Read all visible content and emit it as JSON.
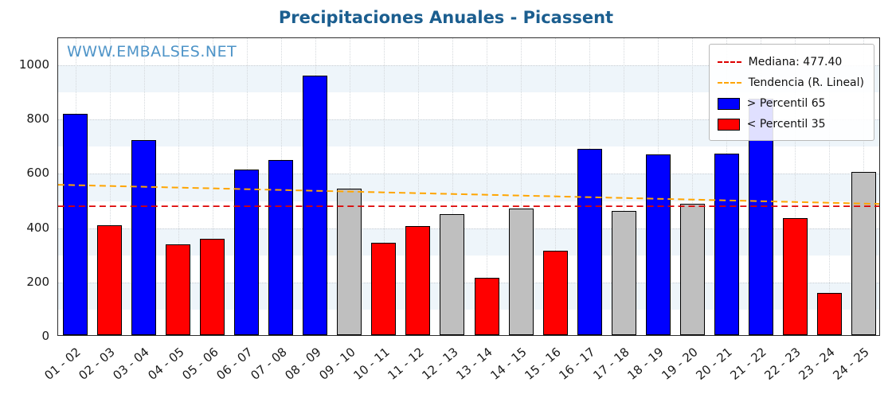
{
  "title": "Precipitaciones Anuales - Picassent",
  "watermark": "WWW.EMBALSES.NET",
  "colors": {
    "above": "#0000ff",
    "below": "#ff0000",
    "mid": "#bfbfbf",
    "median_line": "#dd0000",
    "trend_line": "#ffa500",
    "title_text": "#1b5e8f",
    "watermark_text": "#4e94c8"
  },
  "legend": [
    {
      "label": "Mediana: 477.40",
      "swatch": "line",
      "color": "#dd0000"
    },
    {
      "label": "Tendencia (R. Lineal)",
      "swatch": "line",
      "color": "#ffa500"
    },
    {
      "label": "> Percentil 65",
      "swatch": "square",
      "color": "#0000ff"
    },
    {
      "label": "< Percentil 35",
      "swatch": "square",
      "color": "#ff0000"
    }
  ],
  "chart_data": {
    "type": "bar",
    "title": "Precipitaciones Anuales - Picassent",
    "xlabel": "",
    "ylabel": "",
    "categories": [
      "01 - 02",
      "02 - 03",
      "03 - 04",
      "04 - 05",
      "05 - 06",
      "06 - 07",
      "07 - 08",
      "08 - 09",
      "09 - 10",
      "10 - 11",
      "11 - 12",
      "12 - 13",
      "13 - 14",
      "14 - 15",
      "15 - 16",
      "16 - 17",
      "17 - 18",
      "18 - 19",
      "19 - 20",
      "20 - 21",
      "21 - 22",
      "22 - 23",
      "23 - 24",
      "24 - 25"
    ],
    "values": [
      815,
      405,
      720,
      335,
      355,
      610,
      645,
      955,
      540,
      340,
      403,
      445,
      210,
      465,
      310,
      685,
      458,
      665,
      485,
      670,
      870,
      430,
      155,
      600
    ],
    "bar_colors": [
      "above",
      "below",
      "above",
      "below",
      "below",
      "above",
      "above",
      "above",
      "mid",
      "below",
      "below",
      "mid",
      "below",
      "mid",
      "below",
      "above",
      "mid",
      "above",
      "mid",
      "above",
      "above",
      "below",
      "below",
      "mid"
    ],
    "ylim": [
      0,
      1100
    ],
    "yticks": [
      0,
      200,
      400,
      600,
      800,
      1000
    ],
    "median": 477.4,
    "trend": {
      "start": 557,
      "end": 486
    },
    "grid": true,
    "legend_position": "upper right"
  }
}
